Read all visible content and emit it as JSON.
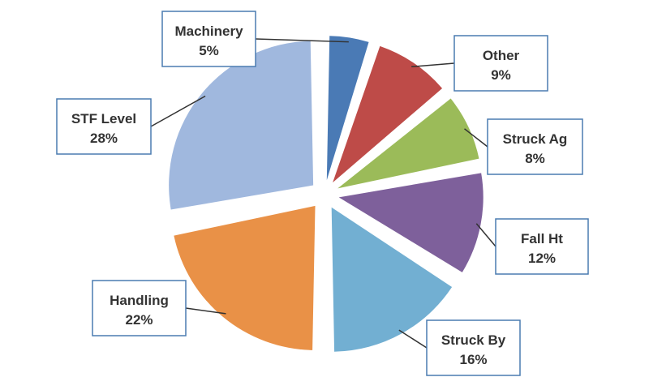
{
  "chart_data": {
    "type": "pie",
    "exploded": true,
    "slices": [
      {
        "label": "Machinery",
        "value": 5,
        "display": "5%",
        "color": "#4a7ab5"
      },
      {
        "label": "Other",
        "value": 9,
        "display": "9%",
        "color": "#be4b48"
      },
      {
        "label": "Struck Ag",
        "value": 8,
        "display": "8%",
        "color": "#9bbb59"
      },
      {
        "label": "Fall Ht",
        "value": 12,
        "display": "12%",
        "color": "#7e609b"
      },
      {
        "label": "Struck By",
        "value": 16,
        "display": "16%",
        "color": "#72afd2"
      },
      {
        "label": "Handling",
        "value": 22,
        "display": "22%",
        "color": "#e99147"
      },
      {
        "label": "STF Level",
        "value": 28,
        "display": "28%",
        "color": "#a0b8de"
      }
    ]
  }
}
